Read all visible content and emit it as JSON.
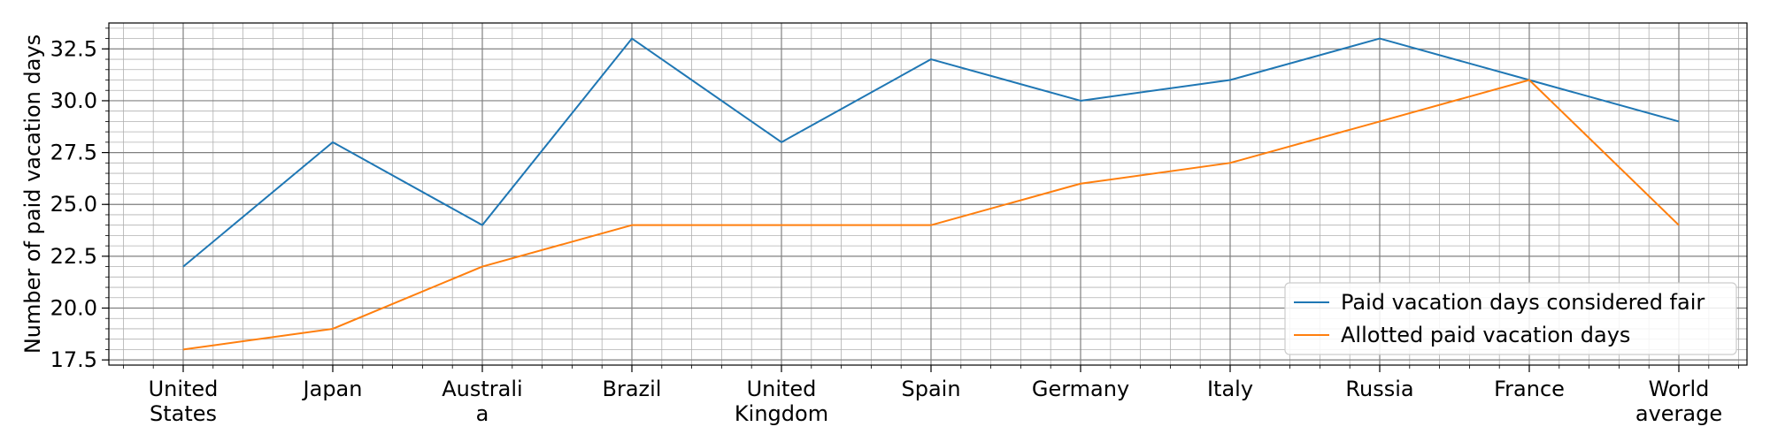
{
  "chart_data": {
    "type": "line",
    "title": "",
    "xlabel": "",
    "ylabel": "Number of paid vacation days",
    "categories": [
      [
        "United",
        "States"
      ],
      [
        "Japan"
      ],
      [
        "Australi",
        "a"
      ],
      [
        "Brazil"
      ],
      [
        "United",
        "Kingdom"
      ],
      [
        "Spain"
      ],
      [
        "Germany"
      ],
      [
        "Italy"
      ],
      [
        "Russia"
      ],
      [
        "France"
      ],
      [
        "World",
        "average"
      ]
    ],
    "series": [
      {
        "name": "Paid vacation days considered fair",
        "color": "#1f77b4",
        "values": [
          22,
          28,
          24,
          33,
          28,
          32,
          30,
          31,
          33,
          31,
          29
        ]
      },
      {
        "name": "Allotted paid vacation days",
        "color": "#ff7f0e",
        "values": [
          18,
          19,
          22,
          24,
          24,
          24,
          26,
          27,
          29,
          31,
          24
        ]
      }
    ],
    "ylim": [
      17.25,
      33.75
    ],
    "yticks": [
      17.5,
      20.0,
      22.5,
      25.0,
      27.5,
      30.0,
      32.5
    ],
    "ytick_labels": [
      "17.5",
      "20.0",
      "22.5",
      "25.0",
      "27.5",
      "30.0",
      "32.5"
    ],
    "grid": true,
    "minor_grid": true,
    "legend_position": "lower-right"
  }
}
